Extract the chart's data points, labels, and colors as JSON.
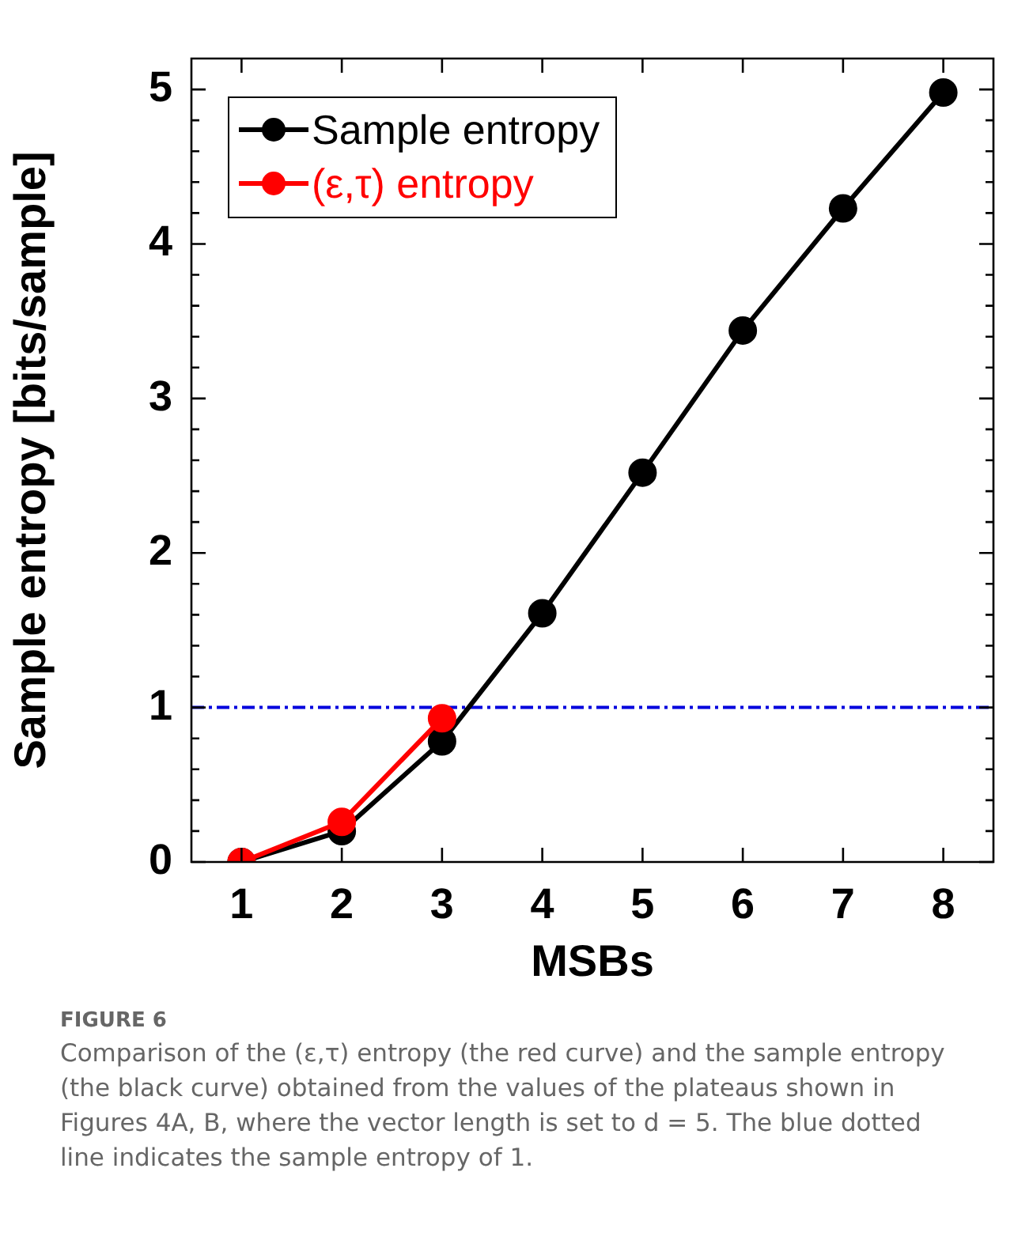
{
  "chart_data": {
    "type": "line",
    "xlabel": "MSBs",
    "ylabel": "Sample entropy [bits/sample]",
    "x": [
      1,
      2,
      3,
      4,
      5,
      6,
      7,
      8
    ],
    "series": [
      {
        "name": "Sample entropy",
        "color": "#000000",
        "values": [
          0,
          0.2,
          0.78,
          1.61,
          2.52,
          3.44,
          4.23,
          4.98
        ]
      },
      {
        "name": "(ε,τ) entropy",
        "color": "#ff0000",
        "x": [
          1,
          2,
          3
        ],
        "values": [
          0,
          0.26,
          0.93
        ]
      }
    ],
    "xlim": [
      0.5,
      8.5
    ],
    "xticks": [
      1,
      2,
      3,
      4,
      5,
      6,
      7,
      8
    ],
    "ylim": [
      0,
      5.2
    ],
    "yticks": [
      0,
      {
        "value": 0.2,
        "label": null
      },
      {
        "value": 0.4,
        "label": null
      },
      {
        "value": 0.6,
        "label": null
      },
      {
        "value": 0.8,
        "label": null
      },
      1,
      {
        "value": 1.2,
        "label": null
      },
      {
        "value": 1.4,
        "label": null
      },
      {
        "value": 1.6,
        "label": null
      },
      {
        "value": 1.8,
        "label": null
      },
      2,
      {
        "value": 2.2,
        "label": null
      },
      {
        "value": 2.4,
        "label": null
      },
      {
        "value": 2.6,
        "label": null
      },
      {
        "value": 2.8,
        "label": null
      },
      3,
      {
        "value": 3.2,
        "label": null
      },
      {
        "value": 3.4,
        "label": null
      },
      {
        "value": 3.6,
        "label": null
      },
      {
        "value": 3.8,
        "label": null
      },
      4,
      {
        "value": 4.2,
        "label": null
      },
      {
        "value": 4.4,
        "label": null
      },
      {
        "value": 4.6,
        "label": null
      },
      {
        "value": 4.8,
        "label": null
      },
      5
    ],
    "ref_lines": [
      {
        "axis": "y",
        "value": 1,
        "color": "#0000dd",
        "line_style": "dashed"
      }
    ],
    "legend": "top left",
    "marker": "circle",
    "line_style": "solid",
    "annotations": [
      "FIGURE 6",
      "Comparison of the (ε,τ) entropy (the red curve) and the sample entropy (the black curve) obtained from the values of the plateaus shown in Figures 4A, B, where the vector length is set to d = 5. The blue dotted line indicates the sample entropy of 1."
    ]
  }
}
